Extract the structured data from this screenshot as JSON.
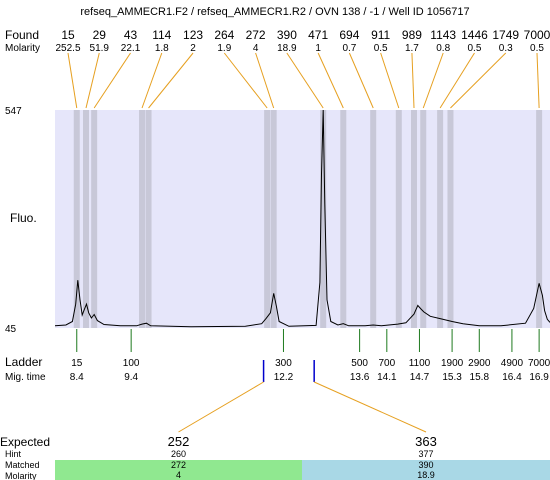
{
  "chart_data": {
    "type": "line",
    "title": "refseq_AMMECR1.F2 / refseq_AMMECR1.R2 / OVN 138 / -1 / Well ID 1056717",
    "ylabel": "Fluo.",
    "ylim": [
      45,
      547
    ],
    "y_tick_labels": [
      "547",
      "45"
    ],
    "xlim": [
      8.0,
      17.1
    ],
    "row_labels": {
      "found": "Found",
      "molarity": "Molarity",
      "ladder": "Ladder",
      "mig_time": "Mig. time",
      "expected": "Expected",
      "hint": "Hint",
      "matched": "Matched",
      "molarity_bottom": "Molarity"
    },
    "found_peaks": [
      {
        "size": "15",
        "molarity": "252.5",
        "time": 8.4
      },
      {
        "size": "29",
        "molarity": "51.9",
        "time": 8.57
      },
      {
        "size": "43",
        "molarity": "22.1",
        "time": 8.72
      },
      {
        "size": "114",
        "molarity": "1.8",
        "time": 9.6
      },
      {
        "size": "123",
        "molarity": "2",
        "time": 9.72
      },
      {
        "size": "264",
        "molarity": "1.9",
        "time": 11.9
      },
      {
        "size": "272",
        "molarity": "4",
        "time": 12.02
      },
      {
        "size": "390",
        "molarity": "18.9",
        "time": 12.93
      },
      {
        "size": "471",
        "molarity": "1",
        "time": 13.3
      },
      {
        "size": "694",
        "molarity": "0.7",
        "time": 13.85
      },
      {
        "size": "911",
        "molarity": "0.5",
        "time": 14.32
      },
      {
        "size": "989",
        "molarity": "1.7",
        "time": 14.6
      },
      {
        "size": "1143",
        "molarity": "0.8",
        "time": 14.77
      },
      {
        "size": "1446",
        "molarity": "0.5",
        "time": 15.08
      },
      {
        "size": "1749",
        "molarity": "0.3",
        "time": 15.27
      },
      {
        "size": "7000",
        "molarity": "0.5",
        "time": 16.9
      }
    ],
    "ladder": [
      {
        "size": "15",
        "time": "8.4"
      },
      {
        "size": "100",
        "time": "9.4"
      },
      {
        "size": "300",
        "time": "12.2"
      },
      {
        "size": "500",
        "time": "13.6"
      },
      {
        "size": "700",
        "time": "14.1"
      },
      {
        "size": "1100",
        "time": "14.7"
      },
      {
        "size": "1900",
        "time": "15.3"
      },
      {
        "size": "2900",
        "time": "15.8"
      },
      {
        "size": "4900",
        "time": "16.4"
      },
      {
        "size": "7000",
        "time": "16.9"
      }
    ],
    "expected": [
      {
        "expected": "252",
        "hint": "260",
        "matched": "272",
        "molarity": "4",
        "time": 12.0,
        "color": "#90e890"
      },
      {
        "expected": "363",
        "hint": "377",
        "matched": "390",
        "molarity": "18.9",
        "time": 12.93,
        "color": "#a9d8e6"
      }
    ],
    "trace": [
      [
        8.0,
        50
      ],
      [
        8.2,
        52
      ],
      [
        8.32,
        60
      ],
      [
        8.38,
        100
      ],
      [
        8.42,
        155
      ],
      [
        8.46,
        110
      ],
      [
        8.5,
        75
      ],
      [
        8.54,
        88
      ],
      [
        8.58,
        100
      ],
      [
        8.62,
        80
      ],
      [
        8.67,
        68
      ],
      [
        8.72,
        76
      ],
      [
        8.78,
        62
      ],
      [
        8.9,
        53
      ],
      [
        9.2,
        50
      ],
      [
        9.5,
        50
      ],
      [
        9.6,
        54
      ],
      [
        9.68,
        56
      ],
      [
        9.76,
        50
      ],
      [
        10.5,
        48
      ],
      [
        11.5,
        49
      ],
      [
        11.8,
        55
      ],
      [
        11.88,
        67
      ],
      [
        11.96,
        80
      ],
      [
        12.02,
        125
      ],
      [
        12.07,
        95
      ],
      [
        12.12,
        60
      ],
      [
        12.3,
        49
      ],
      [
        12.8,
        51
      ],
      [
        12.87,
        150
      ],
      [
        12.9,
        400
      ],
      [
        12.93,
        547
      ],
      [
        12.96,
        330
      ],
      [
        13.0,
        110
      ],
      [
        13.07,
        60
      ],
      [
        13.2,
        52
      ],
      [
        13.3,
        55
      ],
      [
        13.4,
        50
      ],
      [
        13.7,
        50
      ],
      [
        13.85,
        52
      ],
      [
        14.0,
        50
      ],
      [
        14.3,
        54
      ],
      [
        14.45,
        57
      ],
      [
        14.6,
        77
      ],
      [
        14.67,
        97
      ],
      [
        14.72,
        90
      ],
      [
        14.78,
        82
      ],
      [
        14.9,
        72
      ],
      [
        15.1,
        66
      ],
      [
        15.3,
        60
      ],
      [
        15.5,
        55
      ],
      [
        15.8,
        50
      ],
      [
        16.2,
        50
      ],
      [
        16.65,
        56
      ],
      [
        16.8,
        90
      ],
      [
        16.9,
        148
      ],
      [
        16.96,
        120
      ],
      [
        17.0,
        85
      ],
      [
        17.05,
        65
      ],
      [
        17.1,
        58
      ]
    ],
    "colors": {
      "plot_bg": "#e6e6fa",
      "peak_band": "#c8c8d8",
      "found_line": "#e6a020",
      "ladder_line": "#1e7a1e",
      "expected_tick": "#0000cc",
      "trace": "#000000"
    }
  }
}
